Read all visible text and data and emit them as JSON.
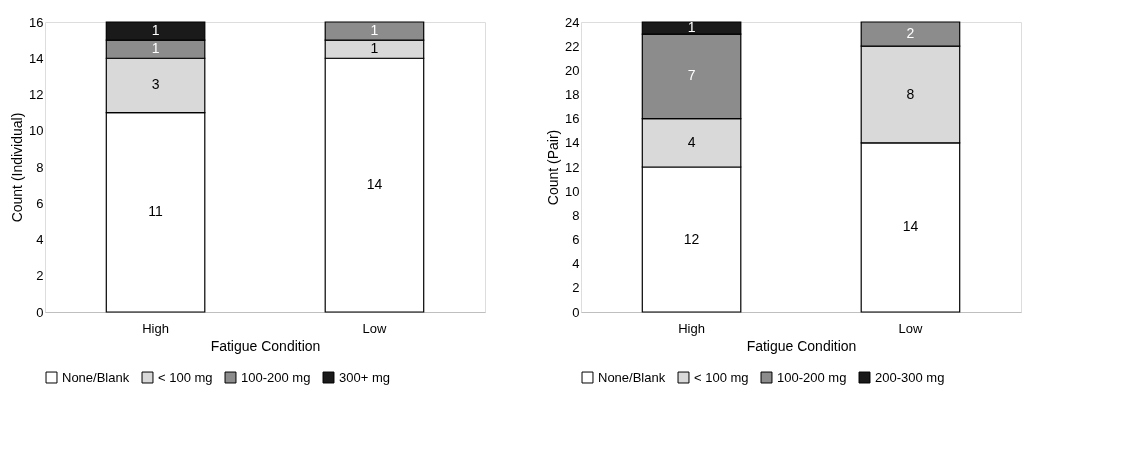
{
  "chart_data": [
    {
      "type": "bar",
      "stacked": true,
      "categories": [
        "High",
        "Low"
      ],
      "xlabel": "Fatigue Condition",
      "ylabel": "Count (Individual)",
      "ylim": [
        0,
        16
      ],
      "yticks": [
        0,
        2,
        4,
        6,
        8,
        10,
        12,
        14,
        16
      ],
      "grid": false,
      "legend": "bottom",
      "data_labels": true,
      "series": [
        {
          "name": "None/Blank",
          "color": "#ffffff",
          "values": [
            11,
            14
          ]
        },
        {
          "name": "< 100 mg",
          "color": "#d9d9d9",
          "values": [
            3,
            1
          ]
        },
        {
          "name": "100-200 mg",
          "color": "#8c8c8c",
          "values": [
            1,
            1
          ]
        },
        {
          "name": "300+ mg",
          "color": "#1a1a1a",
          "values": [
            1,
            null
          ]
        }
      ]
    },
    {
      "type": "bar",
      "stacked": true,
      "categories": [
        "High",
        "Low"
      ],
      "xlabel": "Fatigue Condition",
      "ylabel": "Count (Pair)",
      "ylim": [
        0,
        24
      ],
      "yticks": [
        0,
        2,
        4,
        6,
        8,
        10,
        12,
        14,
        16,
        18,
        20,
        22,
        24
      ],
      "grid": false,
      "legend": "bottom",
      "data_labels": true,
      "series": [
        {
          "name": "None/Blank",
          "color": "#ffffff",
          "values": [
            12,
            14
          ]
        },
        {
          "name": "< 100 mg",
          "color": "#d9d9d9",
          "values": [
            4,
            8
          ]
        },
        {
          "name": "100-200 mg",
          "color": "#8c8c8c",
          "values": [
            7,
            2
          ]
        },
        {
          "name": "200-300 mg",
          "color": "#1a1a1a",
          "values": [
            1,
            null
          ]
        }
      ]
    }
  ]
}
